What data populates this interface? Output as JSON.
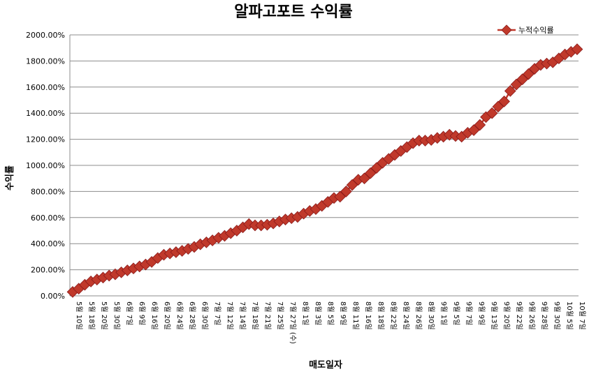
{
  "chart_data": {
    "type": "line",
    "title": "알파고포트 수익률",
    "xlabel": "매도일자",
    "ylabel": "수익률",
    "ylim": [
      0,
      2000
    ],
    "yticks": [
      "0.00%",
      "200.00%",
      "400.00%",
      "600.00%",
      "800.00%",
      "1000.00%",
      "1200.00%",
      "1400.00%",
      "1600.00%",
      "1800.00%",
      "2000.00%"
    ],
    "grid": true,
    "legend_position": "top-right",
    "x_tick_labels": [
      "5월 10일",
      "5월 18일",
      "5월 20일",
      "5월 30일",
      "6월 7일",
      "6월 9일",
      "6월 16일",
      "6월 20일",
      "6월 24일",
      "6월 28일",
      "6월 30일",
      "7월 7일",
      "7월 12일",
      "7월 14일",
      "7월 18일",
      "7월 21일",
      "7월 25일",
      "7월 27일 (수)",
      "8월 1일",
      "8월 3일",
      "8월 5일",
      "8월 9일",
      "8월 11일",
      "8월 16일",
      "8월 18일",
      "8월 22일",
      "8월 24일",
      "8월 26일",
      "8월 30일",
      "9월 1일",
      "9월 5일",
      "9월 7일",
      "9월 9일",
      "9월 13일",
      "9월 20일",
      "9월 22일",
      "9월 26일",
      "9월 28일",
      "9월 30일",
      "10월 5일",
      "10월 7일"
    ],
    "series": [
      {
        "name": "누적수익률",
        "color": "#c0392b",
        "values": [
          30,
          55,
          85,
          110,
          125,
          140,
          155,
          165,
          180,
          195,
          210,
          225,
          240,
          260,
          290,
          315,
          325,
          335,
          345,
          360,
          375,
          395,
          410,
          425,
          445,
          460,
          480,
          500,
          525,
          550,
          540,
          540,
          545,
          555,
          570,
          585,
          595,
          605,
          630,
          650,
          665,
          690,
          720,
          750,
          760,
          800,
          850,
          890,
          900,
          940,
          980,
          1020,
          1050,
          1080,
          1110,
          1140,
          1170,
          1190,
          1190,
          1195,
          1210,
          1220,
          1235,
          1225,
          1220,
          1250,
          1270,
          1310,
          1370,
          1400,
          1450,
          1490,
          1570,
          1620,
          1660,
          1700,
          1740,
          1770,
          1780,
          1790,
          1820,
          1850,
          1870,
          1890
        ]
      }
    ]
  }
}
